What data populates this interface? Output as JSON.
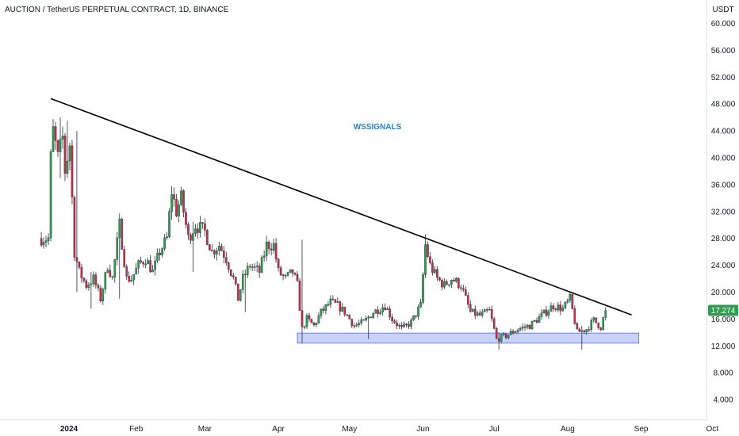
{
  "header": {
    "title": "AUCTION / TetherUS PERPETUAL CONTRACT, 1D, BINANCE"
  },
  "watermark": {
    "text": "WSSIGNALS",
    "color": "#2a7ed3"
  },
  "colors": {
    "up": "#26a69a",
    "up_body": "#2e9e4f",
    "down": "#c62f4a",
    "trendline": "#000000",
    "support_zone": "#b7c3f5",
    "support_border": "#5b6fd6",
    "price_tag": "#2e9e4f"
  },
  "chart_data": {
    "type": "candlestick",
    "title": "AUCTION / TetherUS PERPETUAL CONTRACT, 1D, BINANCE",
    "y_axis": {
      "unit": "USDT",
      "ylim": [
        0,
        62
      ],
      "ticks": [
        "4.000",
        "8.000",
        "12.000",
        "16.000",
        "20.000",
        "24.000",
        "28.000",
        "32.000",
        "36.000",
        "40.000",
        "44.000",
        "48.000",
        "52.000",
        "56.000",
        "60.000"
      ]
    },
    "x_axis": {
      "range_days": [
        -10,
        295
      ],
      "ticks": [
        {
          "label": "2024",
          "day": 0,
          "bold": true
        },
        {
          "label": "Feb",
          "day": 31
        },
        {
          "label": "Mar",
          "day": 60
        },
        {
          "label": "Apr",
          "day": 91
        },
        {
          "label": "May",
          "day": 121
        },
        {
          "label": "Jun",
          "day": 152
        },
        {
          "label": "Jul",
          "day": 182
        },
        {
          "label": "Aug",
          "day": 213
        },
        {
          "label": "Sep",
          "day": 244
        },
        {
          "label": "Oct",
          "day": 274
        }
      ]
    },
    "last_price": "17.274",
    "last_price_value": 17.274,
    "trendline": {
      "from": {
        "day": -5,
        "price": 48.8
      },
      "to": {
        "day": 240,
        "price": 16.6
      }
    },
    "support_zone": {
      "day_start": 100,
      "day_end": 243,
      "price_low": 12.4,
      "price_high": 13.9
    },
    "close_anchors": [
      [
        -9,
        28
      ],
      [
        -6,
        28
      ],
      [
        -5,
        40
      ],
      [
        -4,
        44
      ],
      [
        -2,
        40
      ],
      [
        0,
        43
      ],
      [
        1,
        38
      ],
      [
        3,
        42
      ],
      [
        5,
        26
      ],
      [
        7,
        23
      ],
      [
        10,
        21
      ],
      [
        13,
        22
      ],
      [
        16,
        19
      ],
      [
        19,
        24
      ],
      [
        21,
        22
      ],
      [
        24,
        30
      ],
      [
        27,
        22
      ],
      [
        29,
        22
      ],
      [
        32,
        24
      ],
      [
        35,
        25
      ],
      [
        38,
        23
      ],
      [
        41,
        26
      ],
      [
        44,
        28
      ],
      [
        46,
        35
      ],
      [
        48,
        32
      ],
      [
        50,
        34
      ],
      [
        53,
        28
      ],
      [
        56,
        30
      ],
      [
        60,
        29
      ],
      [
        63,
        26
      ],
      [
        66,
        27
      ],
      [
        69,
        25
      ],
      [
        72,
        22
      ],
      [
        74,
        19
      ],
      [
        76,
        22
      ],
      [
        79,
        24
      ],
      [
        83,
        23
      ],
      [
        86,
        27
      ],
      [
        89,
        27
      ],
      [
        91,
        23
      ],
      [
        94,
        22
      ],
      [
        97,
        23
      ],
      [
        99,
        21
      ],
      [
        101,
        14.5
      ],
      [
        103,
        16
      ],
      [
        106,
        15
      ],
      [
        109,
        17
      ],
      [
        113,
        18.5
      ],
      [
        116,
        18
      ],
      [
        119,
        17
      ],
      [
        123,
        15
      ],
      [
        127,
        15.5
      ],
      [
        131,
        17
      ],
      [
        136,
        18
      ],
      [
        139,
        16
      ],
      [
        143,
        14.5
      ],
      [
        147,
        15.5
      ],
      [
        151,
        18
      ],
      [
        153,
        27
      ],
      [
        155,
        24
      ],
      [
        158,
        22
      ],
      [
        161,
        21
      ],
      [
        164,
        22
      ],
      [
        168,
        21
      ],
      [
        172,
        17
      ],
      [
        176,
        16.5
      ],
      [
        180,
        17.2
      ],
      [
        183,
        13
      ],
      [
        187,
        13.5
      ],
      [
        192,
        14.5
      ],
      [
        197,
        15
      ],
      [
        202,
        16.5
      ],
      [
        207,
        18
      ],
      [
        211,
        17.5
      ],
      [
        214,
        19
      ],
      [
        217,
        14
      ],
      [
        221,
        14.5
      ],
      [
        224,
        15.8
      ],
      [
        227,
        14.8
      ],
      [
        229,
        17.27
      ]
    ],
    "wick_spikes": [
      {
        "day": -1,
        "low": 37,
        "high": 46
      },
      {
        "day": 2,
        "low": 37,
        "high": 45.5
      },
      {
        "day": 6,
        "low": 20,
        "high": 44
      },
      {
        "day": 12,
        "low": 17.5,
        "high": 23
      },
      {
        "day": 24,
        "low": 19,
        "high": 31.5
      },
      {
        "day": 55,
        "low": 23,
        "high": 30.5
      },
      {
        "day": 77,
        "low": 17,
        "high": 23
      },
      {
        "day": 101,
        "low": 12.4,
        "high": 27.8
      },
      {
        "day": 129,
        "low": 13,
        "high": 16
      },
      {
        "day": 153,
        "low": 23,
        "high": 28.6
      },
      {
        "day": 184,
        "low": 11.4,
        "high": 14
      },
      {
        "day": 219,
        "low": 11.4,
        "high": 15
      }
    ]
  }
}
